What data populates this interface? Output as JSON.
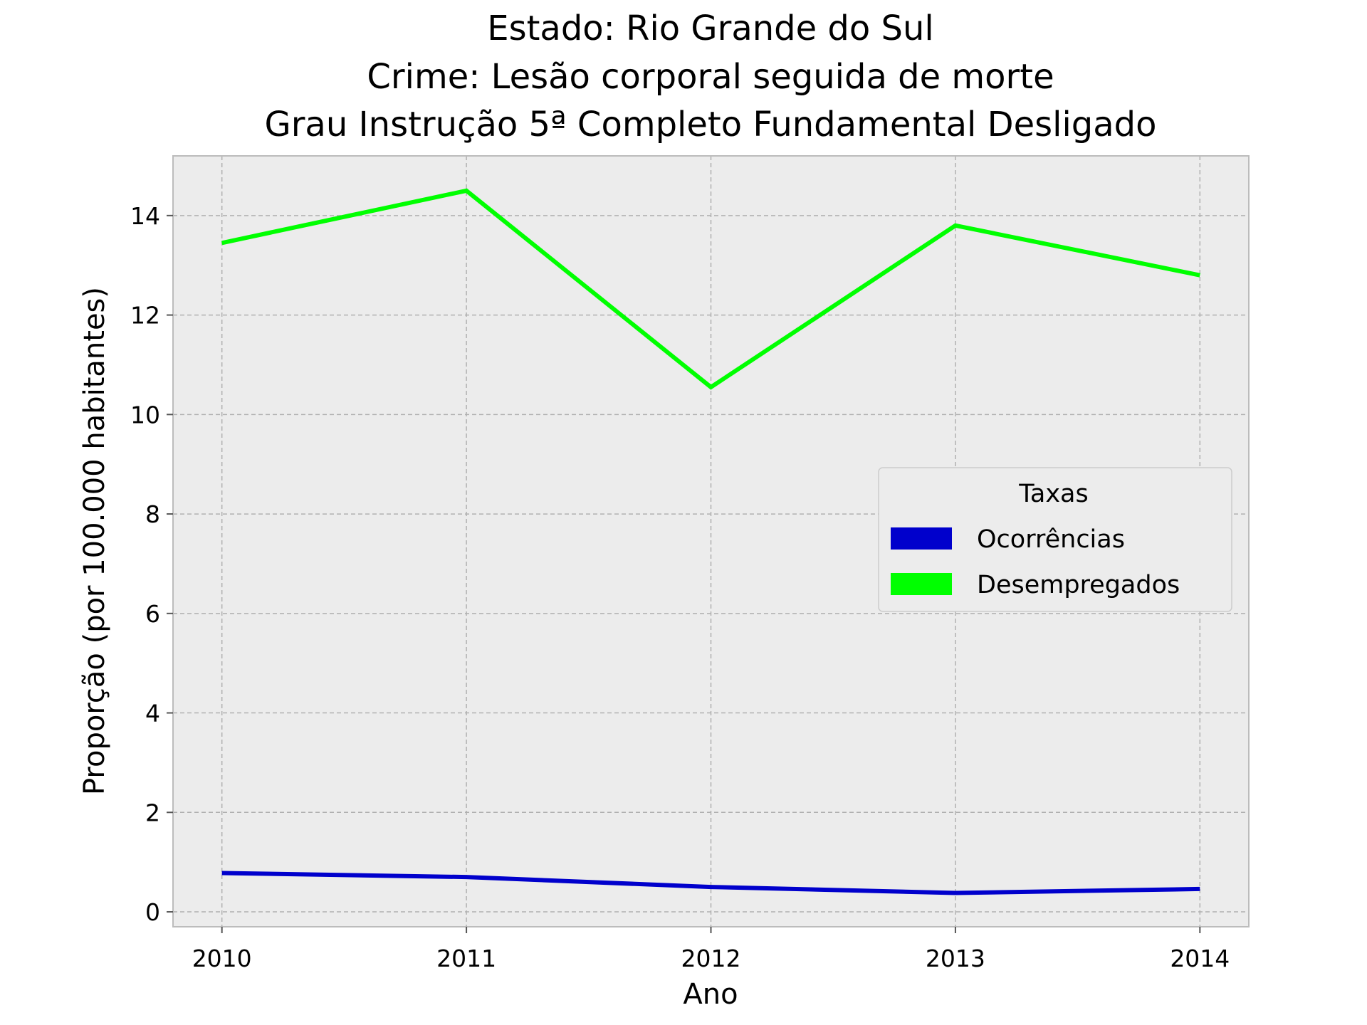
{
  "chart_data": {
    "type": "line",
    "title_lines": [
      "Estado: Rio Grande do Sul",
      "Crime: Lesão corporal seguida de morte",
      "Grau Instrução  5ª Completo Fundamental   Desligado"
    ],
    "xlabel": "Ano",
    "ylabel": "Proporção (por 100.000 habitantes)",
    "x": [
      2010,
      2011,
      2012,
      2013,
      2014
    ],
    "x_tick_labels": [
      "2010",
      "2011",
      "2012",
      "2013",
      "2014"
    ],
    "y_ticks": [
      0,
      2,
      4,
      6,
      8,
      10,
      12,
      14
    ],
    "y_tick_labels": [
      "0",
      "2",
      "4",
      "6",
      "8",
      "10",
      "12",
      "14"
    ],
    "xlim": [
      2009.8,
      2014.2
    ],
    "ylim": [
      -0.3,
      15.2
    ],
    "grid": true,
    "series": [
      {
        "name": "Ocorrências",
        "color": "#0000cc",
        "values": [
          0.78,
          0.7,
          0.5,
          0.38,
          0.46
        ]
      },
      {
        "name": "Desempregados",
        "color": "#00ff00",
        "values": [
          13.45,
          14.5,
          10.55,
          13.8,
          12.8
        ]
      }
    ],
    "legend": {
      "title": "Taxas",
      "position": "right"
    },
    "colors": {
      "plot_background": "#ececec",
      "grid": "#b0b0b0",
      "frame": "#bcbcbc"
    }
  }
}
